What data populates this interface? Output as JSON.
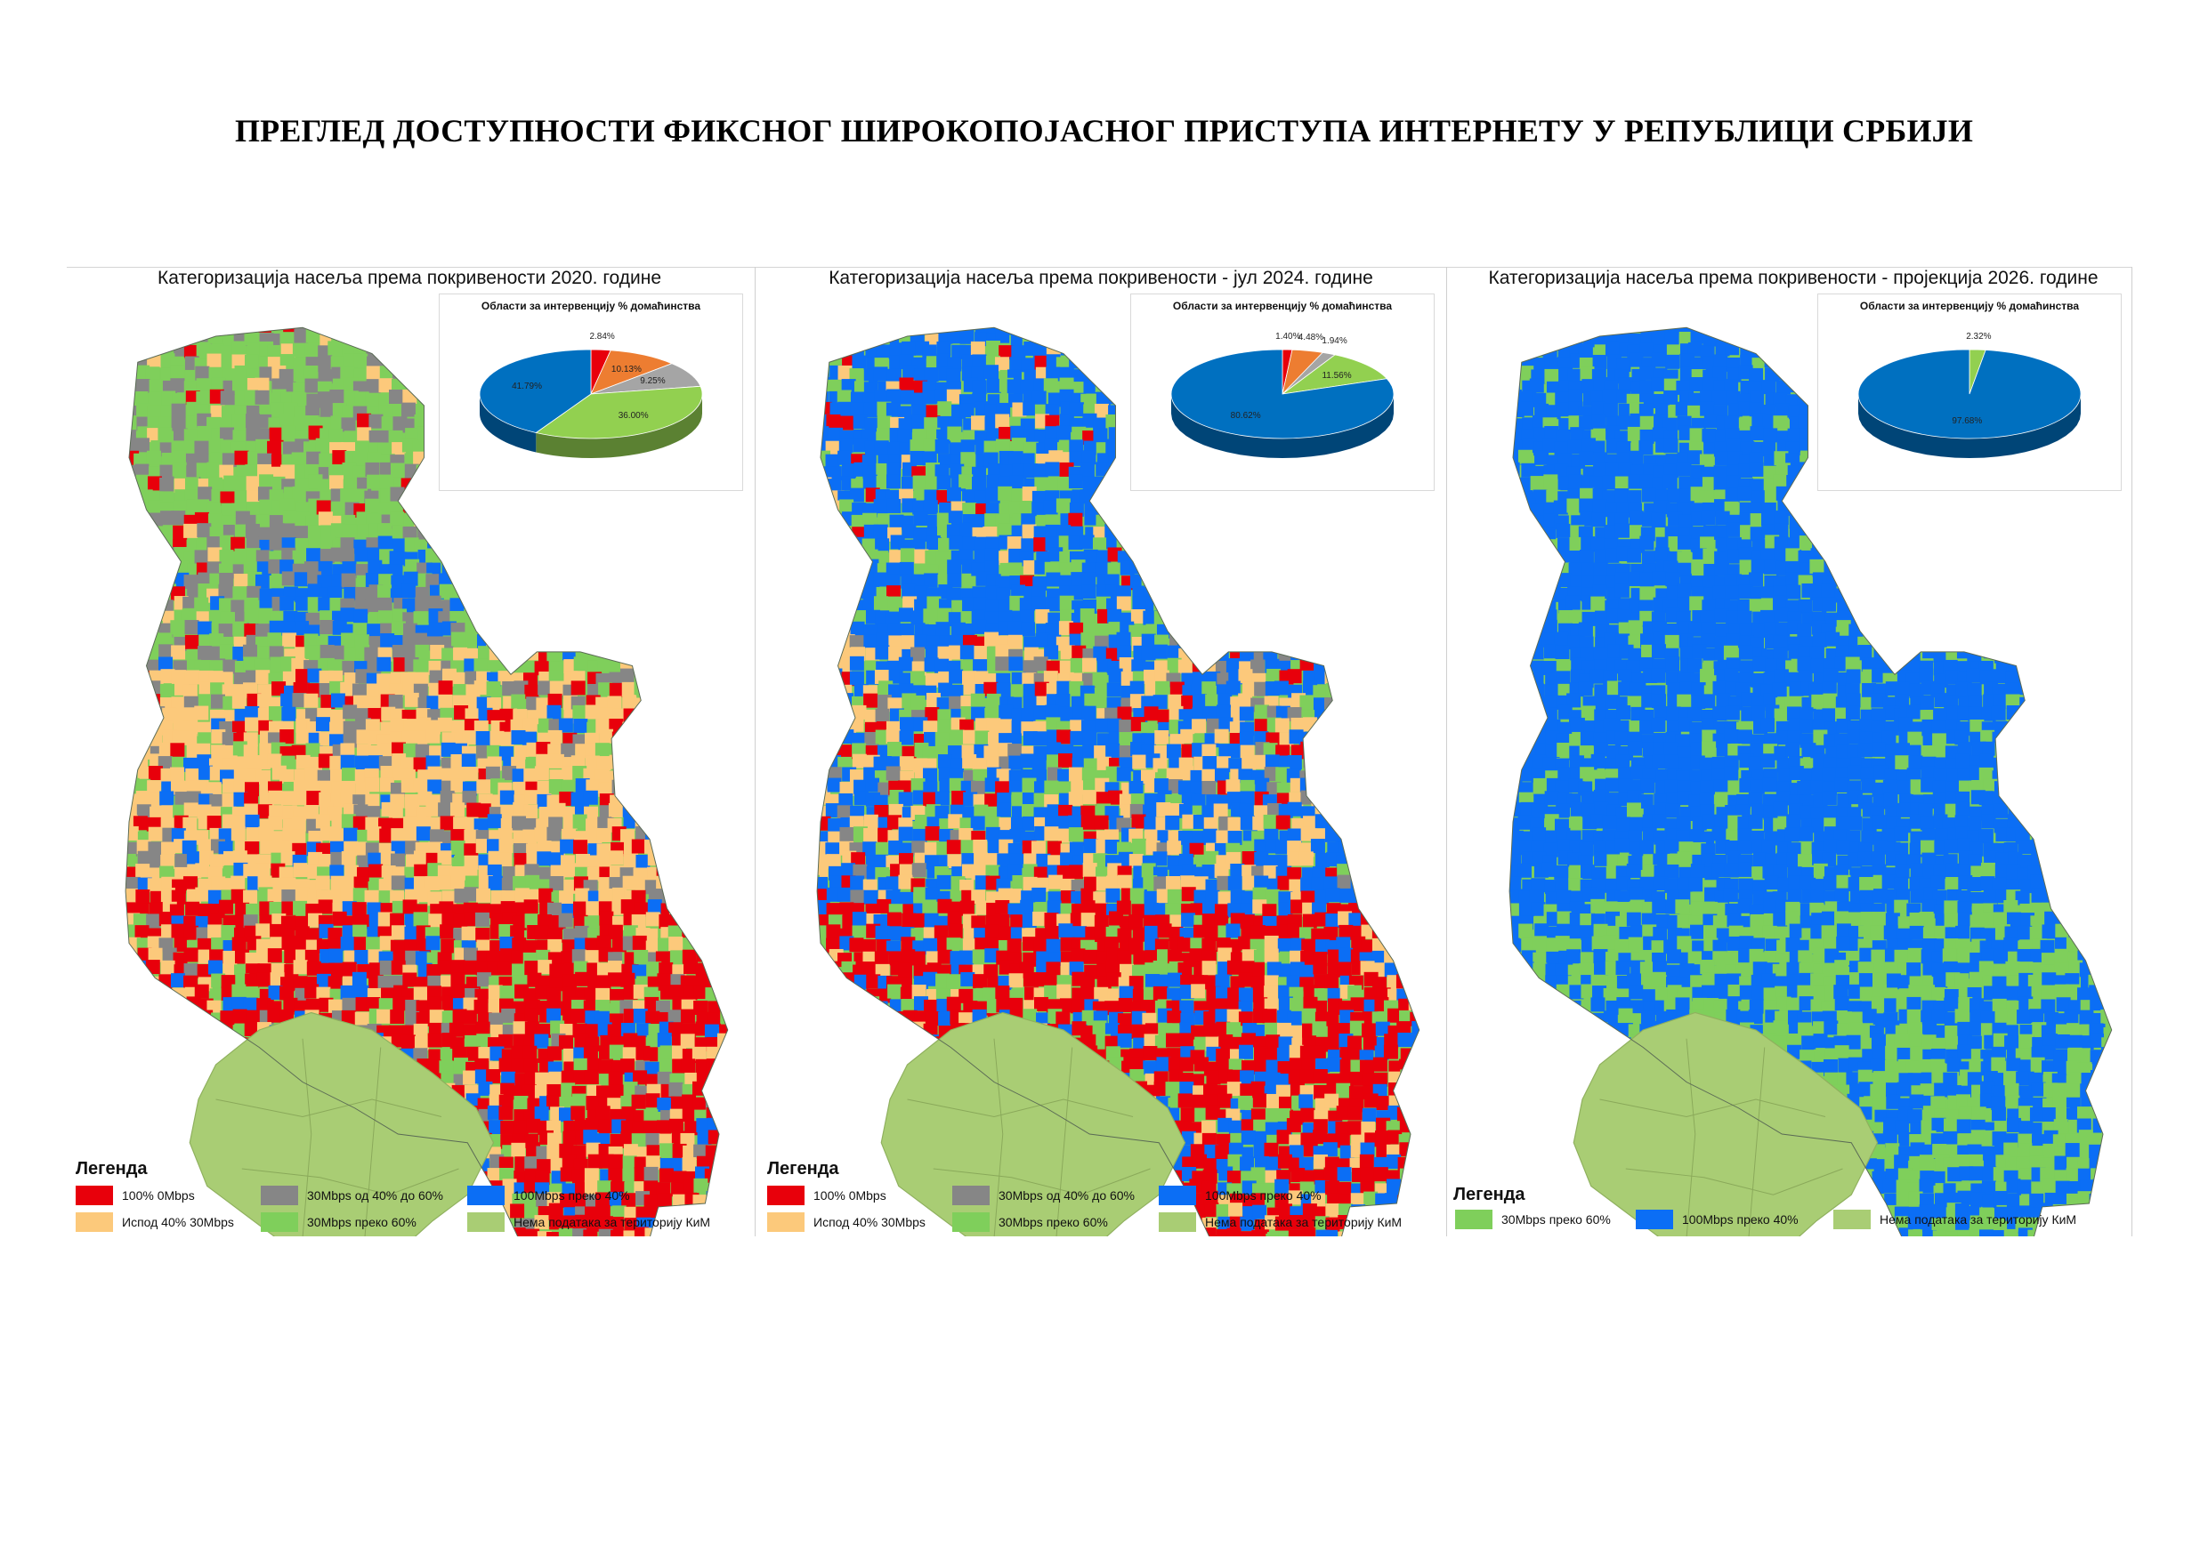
{
  "page": {
    "title": "ПРЕГЛЕД ДОСТУПНОСТИ ФИКСНОГ ШИРОКОПОЈАСНОГ ПРИСТУПА ИНТЕРНЕТУ У РЕПУБЛИЦИ СРБИЈИ"
  },
  "colors": {
    "red": "#e8000b",
    "orange": "#fcc97b",
    "gray": "#868686",
    "green": "#7fcf5b",
    "blue": "#0b6ef5",
    "kim": "#a9cd74"
  },
  "panels": [
    {
      "title": "Категоризација насеља према покривености 2020. године",
      "pie": {
        "title": "Области за интервенцију % домаћинства",
        "slices": [
          {
            "label": "2.84%",
            "value": 2.84,
            "color": "#e8000b"
          },
          {
            "label": "10.13%",
            "value": 10.13,
            "color": "#ed7d31"
          },
          {
            "label": "9.25%",
            "value": 9.25,
            "color": "#a5a5a5"
          },
          {
            "label": "36.00%",
            "value": 36.0,
            "color": "#92d050"
          },
          {
            "label": "41.79%",
            "value": 41.79,
            "color": "#0070c0"
          }
        ]
      },
      "legend_title": "Легенда",
      "legend": [
        {
          "label": "100% 0Mbps",
          "color": "#e8000b"
        },
        {
          "label": "30Mbps од 40% до 60%",
          "color": "#868686"
        },
        {
          "label": "100Mbps преко 40%",
          "color": "#0b6ef5"
        },
        {
          "label": "Испод 40% 30Mbps",
          "color": "#fcc97b"
        },
        {
          "label": "30Mbps преко 60%",
          "color": "#7fcf5b"
        },
        {
          "label": "Нема података за територију КиМ",
          "color": "#a9cd74"
        }
      ]
    },
    {
      "title": "Категоризација насеља према покривености - јул 2024. године",
      "pie": {
        "title": "Области за интервенцију % домаћинства",
        "slices": [
          {
            "label": "1.40%",
            "value": 1.4,
            "color": "#e8000b"
          },
          {
            "label": "4.48%",
            "value": 4.48,
            "color": "#ed7d31"
          },
          {
            "label": "1.94%",
            "value": 1.94,
            "color": "#a5a5a5"
          },
          {
            "label": "11.56%",
            "value": 11.56,
            "color": "#92d050"
          },
          {
            "label": "80.62%",
            "value": 80.62,
            "color": "#0070c0"
          }
        ]
      },
      "legend_title": "Легенда",
      "legend": [
        {
          "label": "100% 0Mbps",
          "color": "#e8000b"
        },
        {
          "label": "30Mbps од 40% до 60%",
          "color": "#868686"
        },
        {
          "label": "100Mbps преко 40%",
          "color": "#0b6ef5"
        },
        {
          "label": "Испод 40% 30Mbps",
          "color": "#fcc97b"
        },
        {
          "label": "30Mbps преко 60%",
          "color": "#7fcf5b"
        },
        {
          "label": "Нема података за територију КиМ",
          "color": "#a9cd74"
        }
      ]
    },
    {
      "title": "Категоризација насеља према покривености - пројекција 2026. године",
      "pie": {
        "title": "Области за интервенцију % домаћинства",
        "slices": [
          {
            "label": "2.32%",
            "value": 2.32,
            "color": "#92d050"
          },
          {
            "label": "97.68%",
            "value": 97.68,
            "color": "#0070c0"
          }
        ]
      },
      "legend_title": "Легенда",
      "legend": [
        {
          "label": "30Mbps преко 60%",
          "color": "#7fcf5b"
        },
        {
          "label": "100Mbps преко 40%",
          "color": "#0b6ef5"
        },
        {
          "label": "Нема података за територију КиМ",
          "color": "#a9cd74"
        }
      ]
    }
  ]
}
